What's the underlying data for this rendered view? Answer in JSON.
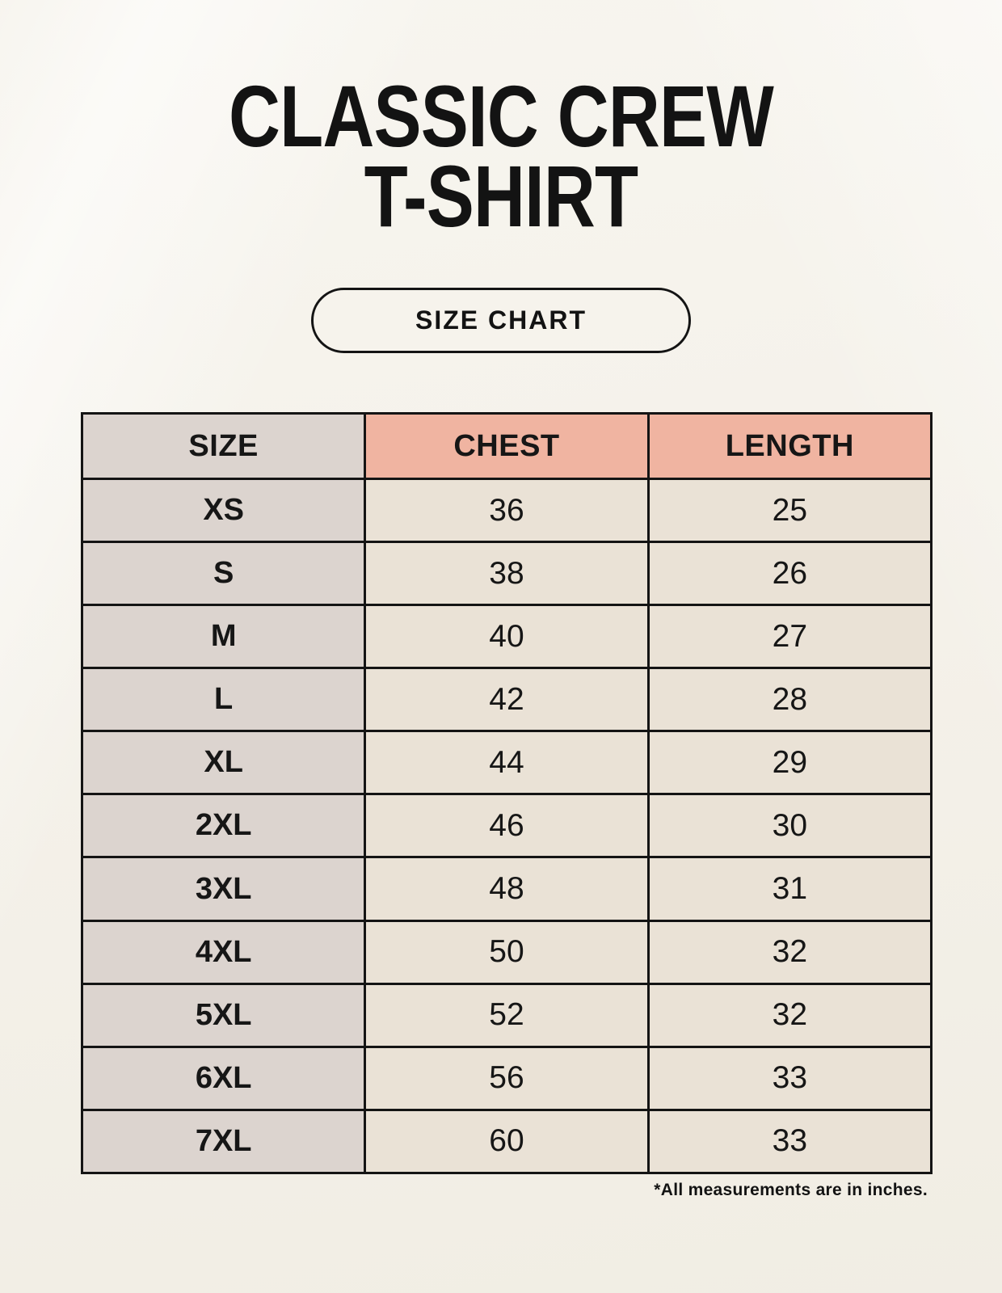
{
  "title": {
    "line1": "CLASSIC CREW",
    "line2": "T-SHIRT"
  },
  "badge": {
    "label": "SIZE CHART"
  },
  "footnote": "*All measurements are in inches.",
  "colors": {
    "background": "#f5f2ea",
    "header_accent": "#f0b4a1",
    "size_column": "#dcd4cf",
    "value_cell": "#eae2d6",
    "border": "#141414",
    "text": "#161616"
  },
  "chart_data": {
    "type": "table",
    "title": "CLASSIC CREW T-SHIRT",
    "subtitle": "SIZE CHART",
    "units": "inches",
    "note": "*All measurements are in inches.",
    "columns": [
      "SIZE",
      "CHEST",
      "LENGTH"
    ],
    "rows": [
      [
        "XS",
        36,
        25
      ],
      [
        "S",
        38,
        26
      ],
      [
        "M",
        40,
        27
      ],
      [
        "L",
        42,
        28
      ],
      [
        "XL",
        44,
        29
      ],
      [
        "2XL",
        46,
        30
      ],
      [
        "3XL",
        48,
        31
      ],
      [
        "4XL",
        50,
        32
      ],
      [
        "5XL",
        52,
        32
      ],
      [
        "6XL",
        56,
        33
      ],
      [
        "7XL",
        60,
        33
      ]
    ]
  }
}
